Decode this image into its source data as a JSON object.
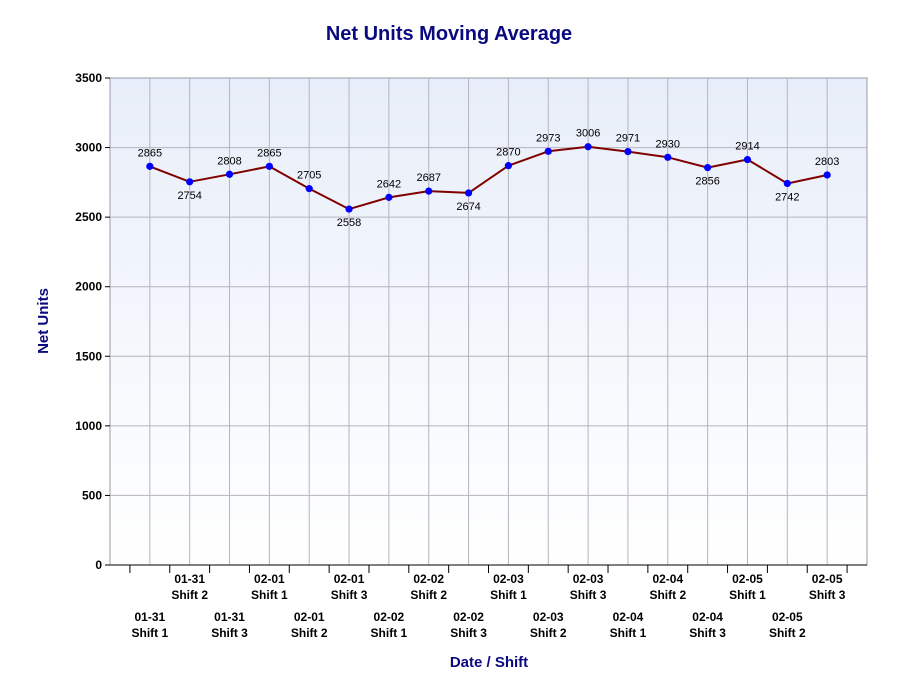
{
  "chart_data": {
    "type": "line",
    "title": "Net Units Moving Average",
    "xlabel": "Date / Shift",
    "ylabel": "Net Units",
    "ylim": [
      0,
      3500
    ],
    "yticks": [
      0,
      500,
      1000,
      1500,
      2000,
      2500,
      3000,
      3500
    ],
    "grid": true,
    "categories": [
      {
        "date": "01-31",
        "shift": "Shift 1"
      },
      {
        "date": "01-31",
        "shift": "Shift 2"
      },
      {
        "date": "01-31",
        "shift": "Shift 3"
      },
      {
        "date": "02-01",
        "shift": "Shift 1"
      },
      {
        "date": "02-01",
        "shift": "Shift 2"
      },
      {
        "date": "02-01",
        "shift": "Shift 3"
      },
      {
        "date": "02-02",
        "shift": "Shift 1"
      },
      {
        "date": "02-02",
        "shift": "Shift 2"
      },
      {
        "date": "02-02",
        "shift": "Shift 3"
      },
      {
        "date": "02-03",
        "shift": "Shift 1"
      },
      {
        "date": "02-03",
        "shift": "Shift 2"
      },
      {
        "date": "02-03",
        "shift": "Shift 3"
      },
      {
        "date": "02-04",
        "shift": "Shift 1"
      },
      {
        "date": "02-04",
        "shift": "Shift 2"
      },
      {
        "date": "02-04",
        "shift": "Shift 3"
      },
      {
        "date": "02-05",
        "shift": "Shift 1"
      },
      {
        "date": "02-05",
        "shift": "Shift 2"
      },
      {
        "date": "02-05",
        "shift": "Shift 3"
      }
    ],
    "series": [
      {
        "values": [
          2865,
          2754,
          2808,
          2865,
          2705,
          2558,
          2642,
          2687,
          2674,
          2870,
          2973,
          3006,
          2971,
          2930,
          2856,
          2914,
          2742,
          2803
        ],
        "label_positions": [
          "above",
          "below",
          "above",
          "above",
          "above",
          "below",
          "above",
          "above",
          "below",
          "above",
          "above",
          "above",
          "above",
          "above",
          "below",
          "above",
          "below",
          "above"
        ],
        "line_color": "#800000",
        "marker_color": "#0000ff"
      }
    ]
  }
}
